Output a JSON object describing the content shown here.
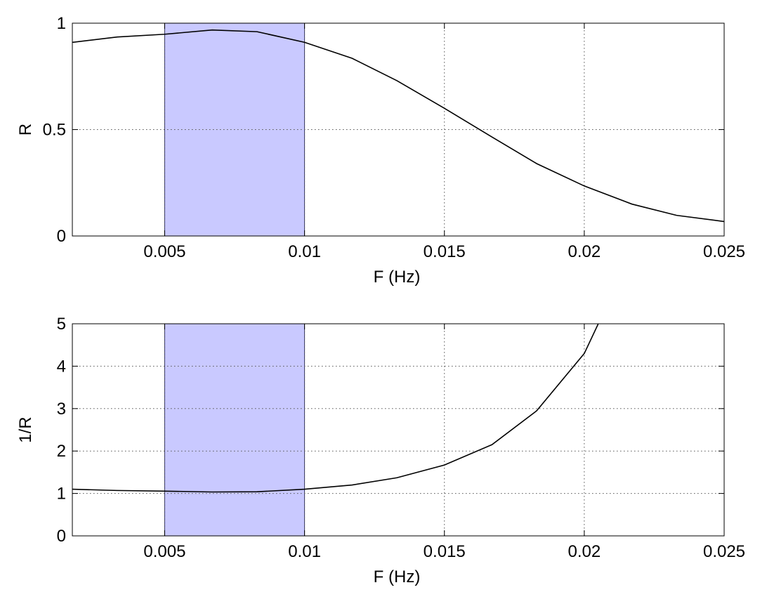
{
  "chart_data": [
    {
      "type": "line",
      "xlabel": "F (Hz)",
      "ylabel": "R",
      "xlim": [
        0.0017,
        0.025
      ],
      "ylim": [
        0,
        1
      ],
      "grid": true,
      "x_ticks": [
        0.005,
        0.01,
        0.015,
        0.02,
        0.025
      ],
      "x_tick_labels": [
        "0.005",
        "0.01",
        "0.015",
        "0.02",
        "0.025"
      ],
      "y_ticks": [
        0,
        0.5,
        1
      ],
      "y_tick_labels": [
        "0",
        "0.5",
        "1"
      ],
      "band": {
        "x_start": 0.005,
        "x_end": 0.01,
        "color": "#c9c9ff"
      },
      "series": [
        {
          "color": "#000000",
          "x": [
            0.0017,
            0.0033,
            0.005,
            0.0067,
            0.0083,
            0.01,
            0.0117,
            0.0133,
            0.015,
            0.0167,
            0.0183,
            0.02,
            0.0217,
            0.0233,
            0.025
          ],
          "y": [
            0.91,
            0.935,
            0.948,
            0.968,
            0.96,
            0.91,
            0.835,
            0.73,
            0.6,
            0.465,
            0.34,
            0.235,
            0.15,
            0.097,
            0.068
          ]
        }
      ]
    },
    {
      "type": "line",
      "xlabel": "F (Hz)",
      "ylabel": "1/R",
      "xlim": [
        0.0017,
        0.025
      ],
      "ylim": [
        0,
        5
      ],
      "grid": true,
      "x_ticks": [
        0.005,
        0.01,
        0.015,
        0.02,
        0.025
      ],
      "x_tick_labels": [
        "0.005",
        "0.01",
        "0.015",
        "0.02",
        "0.025"
      ],
      "y_ticks": [
        0,
        1,
        2,
        3,
        4,
        5
      ],
      "y_tick_labels": [
        "0",
        "1",
        "2",
        "3",
        "4",
        "5"
      ],
      "band": {
        "x_start": 0.005,
        "x_end": 0.01,
        "color": "#c9c9ff"
      },
      "series": [
        {
          "color": "#000000",
          "x": [
            0.0017,
            0.0033,
            0.005,
            0.0067,
            0.0083,
            0.01,
            0.0117,
            0.0133,
            0.015,
            0.0167,
            0.0183,
            0.02,
            0.0205
          ],
          "y": [
            1.1,
            1.07,
            1.055,
            1.035,
            1.04,
            1.1,
            1.2,
            1.37,
            1.67,
            2.15,
            2.95,
            4.3,
            5.0
          ]
        }
      ]
    }
  ]
}
